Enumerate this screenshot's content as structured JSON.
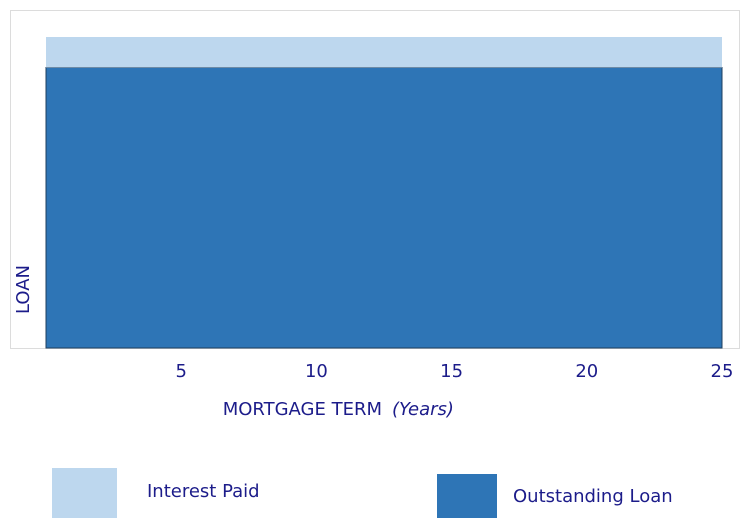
{
  "chart_data": {
    "type": "stacked_area",
    "x": [
      0,
      25
    ],
    "series": [
      {
        "name": "Outstanding Loan",
        "color": "#2e75b6",
        "values": [
          83,
          83
        ]
      },
      {
        "name": "Interest Paid",
        "color": "#bdd7ee",
        "values": [
          9,
          9
        ]
      }
    ],
    "xlim": [
      0,
      25
    ],
    "xticks": [
      5,
      10,
      15,
      20,
      25
    ],
    "ylim": [
      0,
      100
    ],
    "x_label": "MORTGAGE TERM",
    "x_label_unit": "(Years)",
    "y_label": "LOAN",
    "legend": "bottom"
  }
}
